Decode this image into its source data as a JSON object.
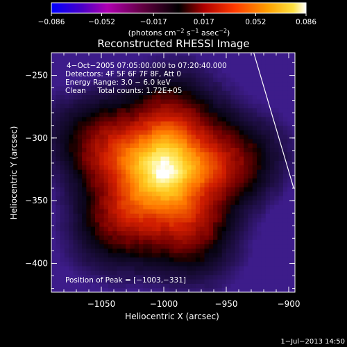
{
  "chart_data": {
    "type": "heatmap",
    "title": "Reconstructed RHESSI Image",
    "xlabel": "Heliocentric X (arcsec)",
    "ylabel": "Heliocentric Y (arcsec)",
    "xlim": [
      -1090,
      -895
    ],
    "ylim": [
      -423,
      -232
    ],
    "x_ticks": [
      -1050,
      -1000,
      -950,
      -900
    ],
    "x_tick_labels": [
      "−1050",
      "−1000",
      "−950",
      "−900"
    ],
    "y_ticks": [
      -250,
      -300,
      -350,
      -400
    ],
    "y_tick_labels": [
      "−250",
      "−300",
      "−350",
      "−400"
    ],
    "colorbar": {
      "min": -0.086,
      "max": 0.086,
      "ticks": [
        -0.086,
        -0.052,
        -0.017,
        0.017,
        0.052,
        0.086
      ],
      "tick_labels": [
        "−0.086",
        "−0.052",
        "−0.017",
        "0.017",
        "0.052",
        "0.086"
      ],
      "label_main": "(photons cm",
      "label_exp1": "−2",
      "label_mid1": " s",
      "label_exp2": "−1",
      "label_mid2": " asec",
      "label_exp3": "−2",
      "label_end": ")"
    },
    "info_lines": [
      "4−Oct−2005 07:05:00.000 to 07:20:40.000",
      "Detectors: 4F 5F 6F 7F 8F, Att 0",
      "Energy Range: 3.0 − 6.0 keV",
      "Clean     Total counts: 1.72E+05"
    ],
    "peak": {
      "x": -1003,
      "y": -331
    },
    "peak_label": "Position of Peak = [−1003,−331]",
    "limb_line": [
      [
        -928,
        -232
      ],
      [
        -896,
        -340
      ]
    ],
    "source": {
      "center": [
        -1003,
        -331
      ],
      "sigma": [
        42,
        40
      ],
      "peak_value": 0.086,
      "extent_radii": [
        72,
        68
      ],
      "core_offset": [
        -1000,
        -318
      ]
    },
    "timestamp": "1−Jul−2013 14:50"
  }
}
